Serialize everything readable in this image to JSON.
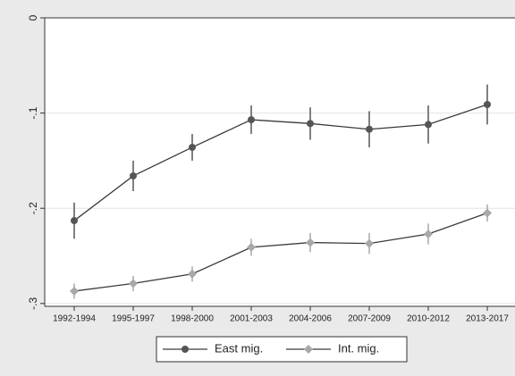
{
  "chart_data": {
    "type": "line",
    "categories": [
      "1992-1994",
      "1995-1997",
      "1998-2000",
      "2001-2003",
      "2004-2006",
      "2007-2009",
      "2010-2012",
      "2013-2017"
    ],
    "series": [
      {
        "name": "East mig.",
        "color": "#555555",
        "marker": "circle",
        "values": [
          -0.213,
          -0.166,
          -0.136,
          -0.107,
          -0.111,
          -0.117,
          -0.112,
          -0.091
        ],
        "errors": [
          0.019,
          0.016,
          0.014,
          0.015,
          0.017,
          0.019,
          0.02,
          0.021
        ]
      },
      {
        "name": "Int. mig.",
        "color": "#a8a8a8",
        "marker": "diamond",
        "values": [
          -0.287,
          -0.279,
          -0.269,
          -0.241,
          -0.236,
          -0.237,
          -0.227,
          -0.205
        ],
        "errors": [
          0.008,
          0.008,
          0.008,
          0.009,
          0.01,
          0.011,
          0.011,
          0.009
        ]
      }
    ],
    "line_color": "#3a3a3a",
    "ylim": [
      -0.303,
      0
    ],
    "yticks": [
      0,
      {
        "value": -0.1,
        "label": "-.1"
      },
      {
        "value": -0.2,
        "label": "-.2"
      },
      {
        "value": -0.3,
        "label": "-.3"
      }
    ],
    "grid": true,
    "legend": "bottom"
  }
}
